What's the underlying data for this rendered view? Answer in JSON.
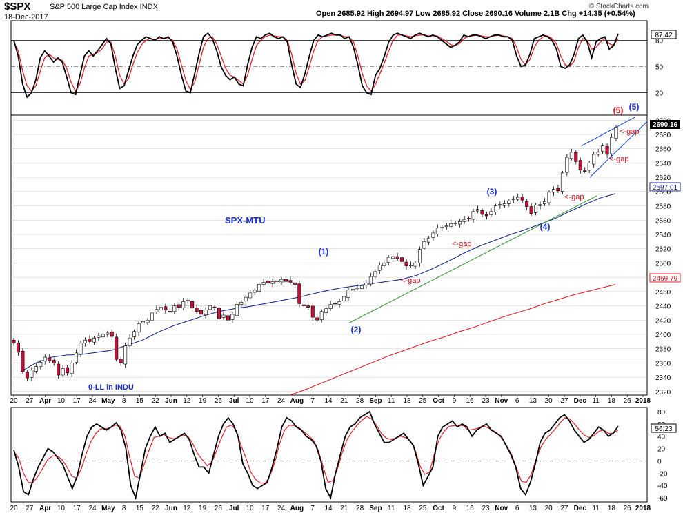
{
  "header": {
    "symbol": "$SPX",
    "description": "S&P 500 Large Cap Index  INDX",
    "date": "18-Dec-2017",
    "ohlc": "Open 2685.92  High 2694.97  Low 2685.92  Close 2690.16  Volume 2.1B  Chg +14.35 (+0.54%)",
    "brand": "© StockCharts.com"
  },
  "colors": {
    "frame": "#000000",
    "grid": "#c8c8c8",
    "oscillator_fast": "#000000",
    "oscillator_slow": "#e0202a",
    "ma_short": "#1c2a8c",
    "ma_long": "#e0202a",
    "trendline": "#3a9a3a",
    "channel": "#1a4fd8",
    "wave_blue": "#1a2fd0",
    "wave_red": "#d0101c",
    "up_candle": "#ffffff",
    "down_candle": "#c8103a"
  },
  "annotations": {
    "chart_title": "SPX-MTU",
    "zero_ll": "0-LL in INDU",
    "waves": [
      "(1)",
      "(2)",
      "(3)",
      "(4)",
      "(5)",
      "(5)"
    ],
    "gaps": [
      "<-gap",
      "<-gap",
      "<-gap",
      "<-gap",
      "<-gap"
    ]
  },
  "chart_data": [
    {
      "type": "line",
      "panel": "top oscillator",
      "y_ticks": [
        20,
        50,
        80
      ],
      "last_value_label": "87.42",
      "reference_lines": [
        20,
        50,
        80
      ],
      "series": [
        {
          "values": [
            80,
            62,
            30,
            15,
            20,
            35,
            60,
            68,
            62,
            55,
            60,
            55,
            38,
            20,
            18,
            40,
            62,
            68,
            62,
            68,
            75,
            82,
            76,
            48,
            25,
            28,
            45,
            62,
            75,
            80,
            84,
            82,
            80,
            84,
            82,
            84,
            78,
            62,
            40,
            22,
            20,
            42,
            65,
            84,
            88,
            82,
            68,
            50,
            40,
            35,
            38,
            30,
            28,
            52,
            72,
            84,
            82,
            86,
            88,
            84,
            82,
            84,
            78,
            52,
            30,
            26,
            42,
            62,
            80,
            86,
            84,
            86,
            88,
            86,
            86,
            82,
            84,
            72,
            52,
            28,
            20,
            18,
            40,
            48,
            62,
            78,
            86,
            88,
            86,
            84,
            82,
            86,
            88,
            86,
            84,
            86,
            84,
            80,
            76,
            72,
            74,
            78,
            86,
            84,
            86,
            86,
            84,
            82,
            84,
            86,
            86,
            84,
            84,
            80,
            62,
            50,
            52,
            64,
            82,
            84,
            86,
            84,
            80,
            70,
            50,
            48,
            52,
            64,
            82,
            86,
            78,
            60,
            78,
            82,
            84,
            70,
            74,
            87.42
          ]
        },
        {
          "values": [
            78,
            68,
            45,
            28,
            22,
            28,
            45,
            60,
            64,
            60,
            58,
            57,
            48,
            32,
            22,
            30,
            48,
            62,
            64,
            66,
            70,
            78,
            78,
            62,
            40,
            30,
            36,
            52,
            66,
            75,
            80,
            82,
            81,
            82,
            82,
            83,
            80,
            70,
            52,
            34,
            24,
            32,
            52,
            72,
            82,
            84,
            76,
            62,
            48,
            40,
            38,
            34,
            30,
            40,
            58,
            74,
            80,
            84,
            86,
            85,
            84,
            84,
            80,
            64,
            42,
            30,
            34,
            50,
            68,
            80,
            84,
            85,
            86,
            86,
            86,
            84,
            84,
            78,
            62,
            42,
            28,
            22,
            30,
            42,
            54,
            68,
            80,
            86,
            86,
            85,
            84,
            85,
            86,
            86,
            85,
            85,
            85,
            82,
            79,
            75,
            74,
            76,
            82,
            84,
            85,
            86,
            85,
            84,
            84,
            85,
            86,
            85,
            84,
            82,
            72,
            58,
            52,
            58,
            72,
            80,
            84,
            85,
            82,
            76,
            62,
            52,
            50,
            56,
            72,
            82,
            80,
            70,
            72,
            78,
            82,
            76,
            74,
            82
          ]
        }
      ]
    },
    {
      "type": "candlestick",
      "panel": "price",
      "title": "SPX-MTU",
      "x_tick_labels": [
        "20",
        "27",
        "Apr",
        "10",
        "17",
        "24",
        "May",
        "8",
        "15",
        "22",
        "Jun",
        "12",
        "19",
        "26",
        "Jul",
        "10",
        "17",
        "24",
        "Aug",
        "7",
        "14",
        "21",
        "28",
        "Sep",
        "11",
        "18",
        "25",
        "Oct",
        "9",
        "16",
        "23",
        "Nov",
        "6",
        "13",
        "20",
        "27",
        "Dec",
        "11",
        "18",
        "26",
        "2018"
      ],
      "y_ticks": [
        2320,
        2340,
        2360,
        2380,
        2400,
        2420,
        2440,
        2460,
        2480,
        2500,
        2520,
        2540,
        2560,
        2580,
        2600,
        2620,
        2640,
        2660,
        2680,
        2700
      ],
      "ylim": [
        2315,
        2707
      ],
      "price_labels": [
        "2690.16",
        "2597.01",
        "2469.79"
      ],
      "close": [
        2388,
        2375,
        2348,
        2339,
        2350,
        2355,
        2361,
        2368,
        2363,
        2360,
        2343,
        2352,
        2346,
        2360,
        2374,
        2388,
        2392,
        2390,
        2395,
        2398,
        2400,
        2402,
        2397,
        2365,
        2360,
        2384,
        2395,
        2404,
        2415,
        2418,
        2420,
        2430,
        2435,
        2438,
        2434,
        2432,
        2440,
        2438,
        2446,
        2448,
        2437,
        2432,
        2428,
        2434,
        2440,
        2437,
        2422,
        2427,
        2420,
        2428,
        2442,
        2445,
        2452,
        2458,
        2462,
        2470,
        2473,
        2472,
        2474,
        2475,
        2477,
        2474,
        2473,
        2470,
        2443,
        2440,
        2438,
        2424,
        2420,
        2432,
        2436,
        2442,
        2443,
        2446,
        2453,
        2462,
        2463,
        2465,
        2468,
        2472,
        2481,
        2488,
        2497,
        2500,
        2508,
        2509,
        2506,
        2502,
        2496,
        2497,
        2500,
        2519,
        2530,
        2535,
        2542,
        2549,
        2550,
        2552,
        2555,
        2556,
        2558,
        2561,
        2562,
        2572,
        2575,
        2568,
        2566,
        2572,
        2580,
        2582,
        2583,
        2587,
        2590,
        2592,
        2588,
        2579,
        2569,
        2581,
        2582,
        2586,
        2599,
        2603,
        2601,
        2626,
        2648,
        2655,
        2642,
        2630,
        2629,
        2640,
        2652,
        2655,
        2664,
        2652,
        2676,
        2690.16
      ],
      "series": [
        {
          "name": "MA 50",
          "values": [
            2348,
            2360,
            2368,
            2371,
            2372,
            2375,
            2378,
            2385,
            2392,
            2403,
            2412,
            2419,
            2426,
            2432,
            2436,
            2439,
            2443,
            2447,
            2451,
            2456,
            2461,
            2465,
            2468,
            2471,
            2474,
            2477,
            2483,
            2492,
            2502,
            2513,
            2523,
            2531,
            2539,
            2546,
            2554,
            2562,
            2572,
            2582,
            2591,
            2597.01
          ]
        },
        {
          "name": "MA 200",
          "values": [
            2315,
            2322,
            2330,
            2338,
            2346,
            2354,
            2362,
            2370,
            2377,
            2384,
            2391,
            2397,
            2404,
            2410,
            2417,
            2424,
            2430,
            2436,
            2443,
            2449,
            2455,
            2460,
            2465,
            2469.79
          ]
        }
      ]
    },
    {
      "type": "line",
      "panel": "bottom oscillator",
      "y_ticks": [
        -60,
        -40,
        -20,
        0,
        20,
        40,
        60,
        80
      ],
      "last_value_label": "56.23",
      "reference_line": 0,
      "series": [
        {
          "values": [
            18,
            -10,
            -50,
            -55,
            -30,
            -10,
            5,
            20,
            15,
            5,
            -5,
            -25,
            -45,
            -25,
            10,
            40,
            55,
            60,
            55,
            50,
            55,
            62,
            50,
            20,
            -40,
            -60,
            -20,
            20,
            40,
            55,
            40,
            45,
            30,
            35,
            40,
            45,
            35,
            10,
            -10,
            -10,
            -20,
            10,
            40,
            60,
            70,
            60,
            40,
            -5,
            -20,
            -40,
            -45,
            -40,
            -35,
            -10,
            20,
            55,
            70,
            65,
            55,
            50,
            40,
            35,
            25,
            0,
            -45,
            -60,
            -20,
            10,
            40,
            55,
            60,
            70,
            75,
            80,
            60,
            45,
            30,
            30,
            35,
            40,
            45,
            35,
            25,
            -5,
            -40,
            -25,
            -10,
            40,
            55,
            60,
            65,
            55,
            60,
            55,
            40,
            50,
            55,
            60,
            50,
            45,
            40,
            25,
            10,
            -10,
            -45,
            -55,
            -35,
            -5,
            30,
            45,
            50,
            60,
            70,
            75,
            65,
            50,
            40,
            30,
            35,
            45,
            55,
            50,
            40,
            45,
            56.23
          ]
        },
        {
          "values": [
            15,
            5,
            -20,
            -35,
            -35,
            -25,
            -12,
            2,
            8,
            8,
            2,
            -10,
            -25,
            -28,
            -12,
            12,
            32,
            45,
            52,
            52,
            54,
            58,
            56,
            40,
            5,
            -25,
            -28,
            -5,
            18,
            38,
            40,
            43,
            38,
            36,
            38,
            42,
            40,
            28,
            12,
            2,
            -8,
            -2,
            18,
            38,
            55,
            58,
            50,
            25,
            5,
            -18,
            -30,
            -36,
            -36,
            -24,
            -2,
            28,
            50,
            58,
            57,
            54,
            47,
            41,
            33,
            17,
            -10,
            -35,
            -32,
            -12,
            15,
            36,
            48,
            58,
            66,
            72,
            68,
            58,
            45,
            37,
            35,
            37,
            40,
            38,
            33,
            18,
            -8,
            -22,
            -18,
            12,
            35,
            48,
            56,
            57,
            58,
            57,
            50,
            51,
            53,
            57,
            54,
            50,
            45,
            36,
            24,
            10,
            -12,
            -33,
            -35,
            -22,
            2,
            22,
            35,
            43,
            52,
            62,
            70,
            68,
            60,
            50,
            42,
            38,
            41,
            48,
            50,
            45,
            45,
            50
          ]
        }
      ]
    }
  ]
}
